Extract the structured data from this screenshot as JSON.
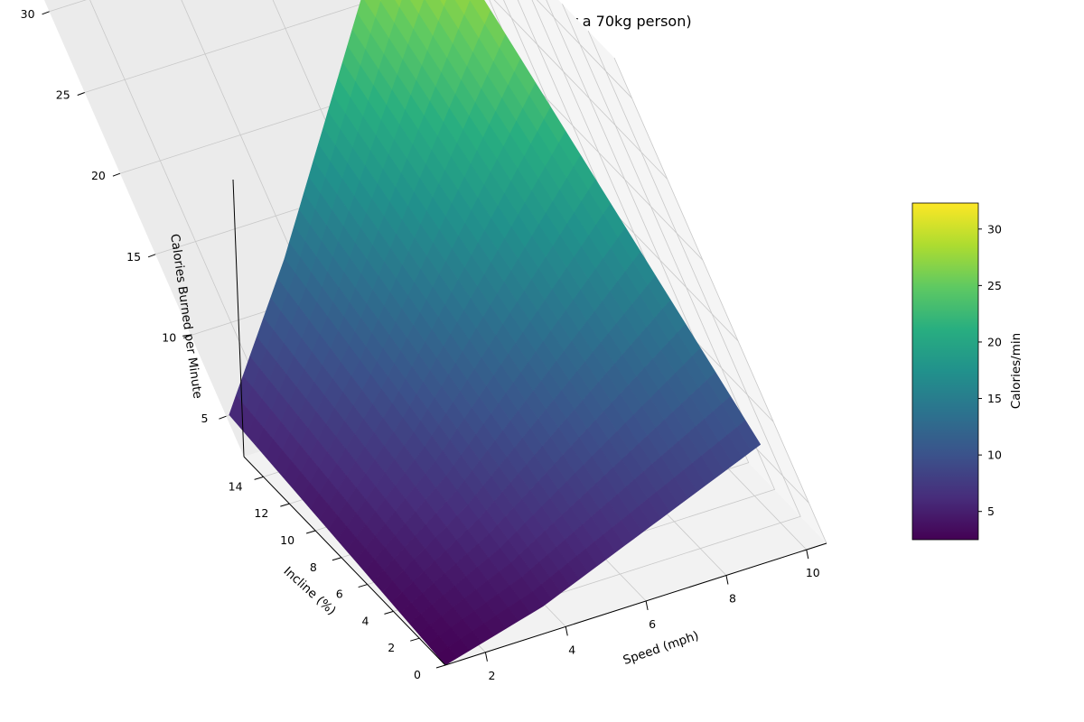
{
  "chart_data": {
    "type": "surface",
    "title": "Treadmill Calorie Burn Rate (for a 70kg person)",
    "xlabel": "Speed (mph)",
    "ylabel": "Incline (%)",
    "zlabel": "Calories Burned per Minute",
    "colorbar_label": "Calories/min",
    "colormap": "viridis",
    "xlim": [
      1,
      10
    ],
    "ylim": [
      0,
      15
    ],
    "zlim": [
      2.5,
      32.3
    ],
    "x_ticks": [
      2,
      4,
      6,
      8,
      10
    ],
    "y_ticks": [
      0,
      2,
      4,
      6,
      8,
      10,
      12,
      14
    ],
    "z_ticks": [
      5,
      10,
      15,
      20,
      25,
      30
    ],
    "colorbar_ticks": [
      5,
      10,
      15,
      20,
      25,
      30
    ],
    "colorbar_range": [
      2.5,
      32.3
    ],
    "grid": true,
    "regime_change_speed_mph": 3.7,
    "corner_values": [
      {
        "speed": 1,
        "incline": 0,
        "calories_per_min": 2.5
      },
      {
        "speed": 1,
        "incline": 15,
        "calories_per_min": 5.5
      },
      {
        "speed": 3.7,
        "incline": 0,
        "calories_per_min": 4.0
      },
      {
        "speed": 3.7,
        "incline": 15,
        "calories_per_min": 13.0
      },
      {
        "speed": 10,
        "incline": 0,
        "calories_per_min": 9.0
      },
      {
        "speed": 10,
        "incline": 15,
        "calories_per_min": 32.3
      }
    ]
  }
}
